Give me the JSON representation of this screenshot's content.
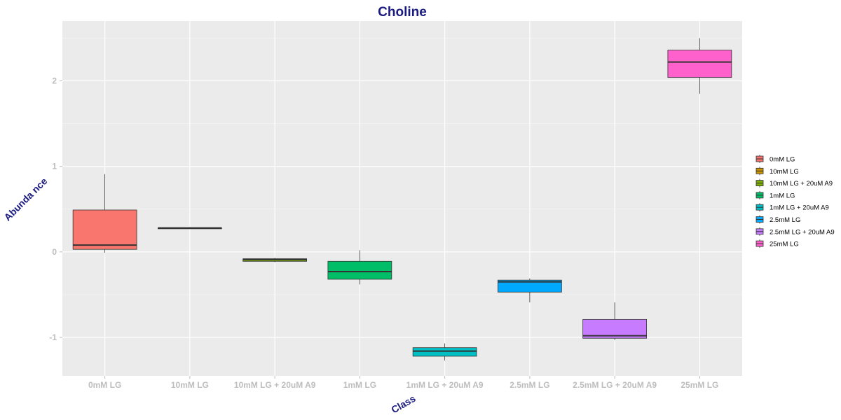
{
  "chart_data": {
    "type": "box",
    "title": "Choline",
    "xlabel": "Class",
    "ylabel": "Abunda nce",
    "ylim": [
      -1.45,
      2.7
    ],
    "yticks": [
      -1,
      0,
      1,
      2
    ],
    "categories": [
      "0mM LG",
      "10mM LG",
      "10mM LG + 20uM A9",
      "1mM LG",
      "1mM LG + 20uM A9",
      "2.5mM LG",
      "2.5mM LG + 20uM A9",
      "25mM LG"
    ],
    "series": [
      {
        "name": "0mM LG",
        "color": "#F8766D",
        "min": -0.01,
        "q1": 0.03,
        "median": 0.08,
        "q3": 0.49,
        "max": 0.91
      },
      {
        "name": "10mM LG",
        "color": "#CD9600",
        "min": 0.27,
        "q1": 0.27,
        "median": 0.28,
        "q3": 0.28,
        "max": 0.29
      },
      {
        "name": "10mM LG + 20uM A9",
        "color": "#7CAE00",
        "min": -0.12,
        "q1": -0.11,
        "median": -0.09,
        "q3": -0.08,
        "max": -0.07
      },
      {
        "name": "1mM LG",
        "color": "#00BE67",
        "min": -0.38,
        "q1": -0.32,
        "median": -0.23,
        "q3": -0.11,
        "max": 0.02
      },
      {
        "name": "1mM LG + 20uM A9",
        "color": "#00BFC4",
        "min": -1.27,
        "q1": -1.22,
        "median": -1.16,
        "q3": -1.12,
        "max": -1.07
      },
      {
        "name": "2.5mM LG",
        "color": "#00A9FF",
        "min": -0.59,
        "q1": -0.47,
        "median": -0.35,
        "q3": -0.33,
        "max": -0.31
      },
      {
        "name": "2.5mM LG + 20uM A9",
        "color": "#C77CFF",
        "min": -1.03,
        "q1": -1.01,
        "median": -0.98,
        "q3": -0.79,
        "max": -0.59
      },
      {
        "name": "25mM LG",
        "color": "#FF61CC",
        "min": 1.85,
        "q1": 2.04,
        "median": 2.22,
        "q3": 2.36,
        "max": 2.5
      }
    ],
    "grid": true,
    "legend_position": "right"
  }
}
